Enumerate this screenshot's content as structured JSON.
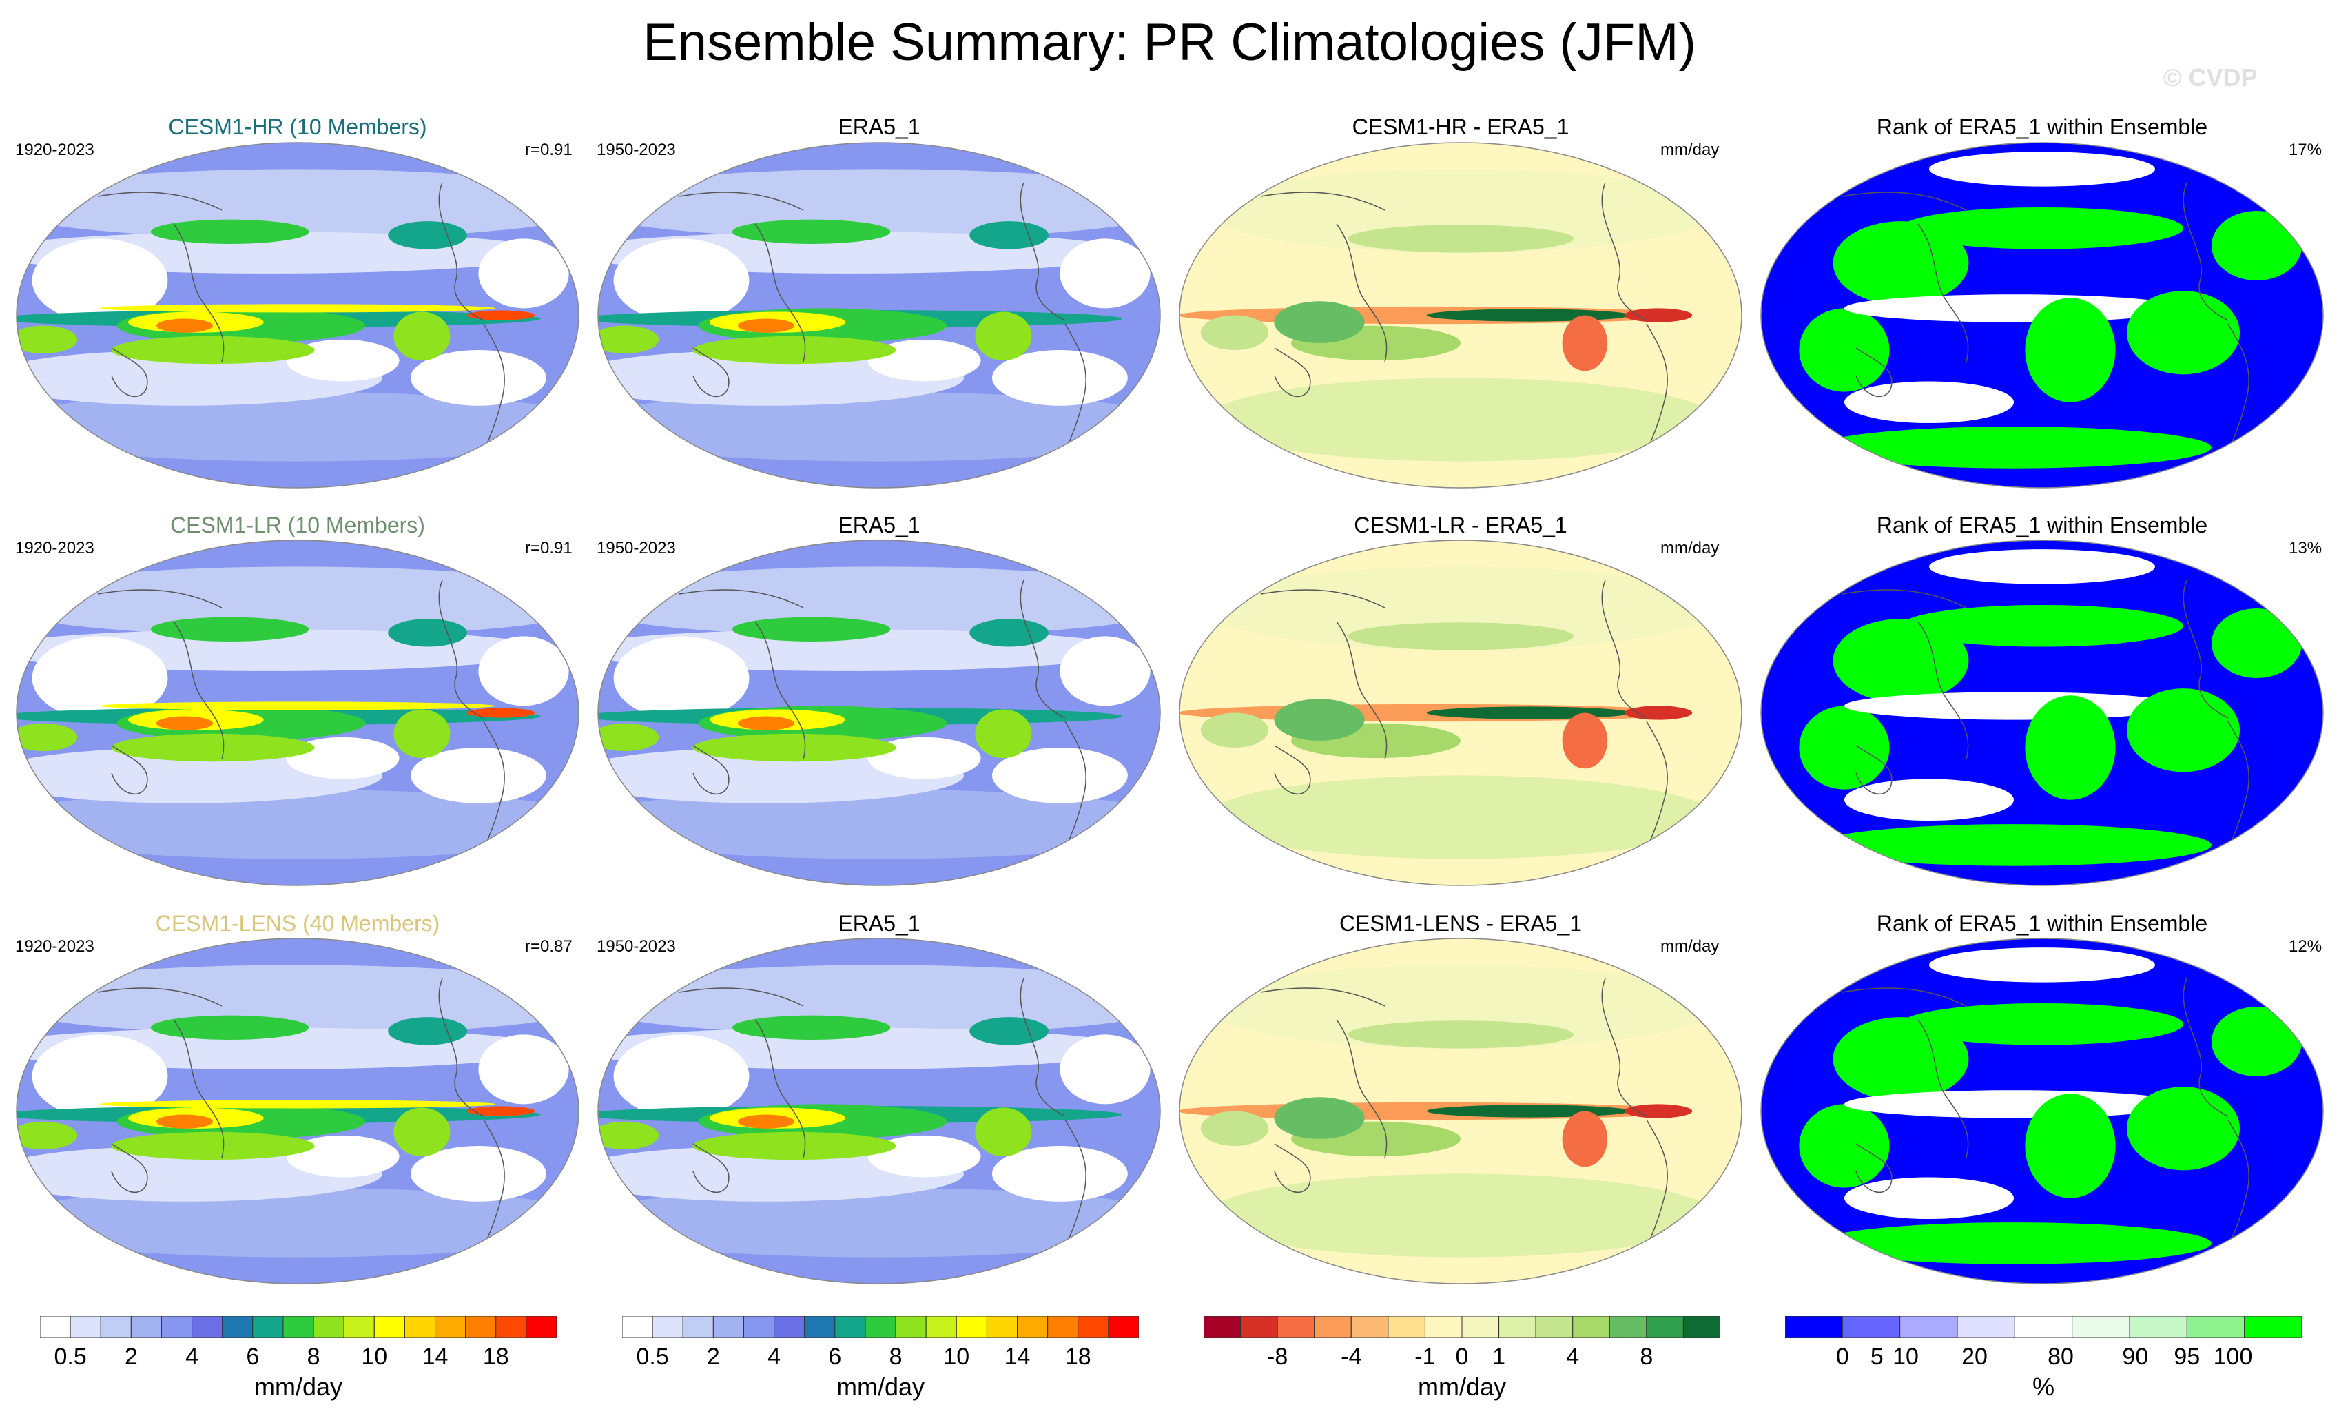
{
  "title": "Ensemble Summary: PR Climatologies (JFM)",
  "watermark": "© CVDP",
  "colors": {
    "precip": [
      "#ffffff",
      "#dce3fb",
      "#c2cdf6",
      "#a3b3f2",
      "#8796ee",
      "#6b70e6",
      "#1f77b0",
      "#13a68a",
      "#2fcb3f",
      "#8ee31e",
      "#c8f019",
      "#ffff00",
      "#ffd400",
      "#ffaa00",
      "#ff7f00",
      "#ff4800",
      "#ff0000"
    ],
    "diff": [
      "#a50026",
      "#d73027",
      "#f46d43",
      "#fb9c59",
      "#fdba74",
      "#fee090",
      "#fff6c0",
      "#f3f6bf",
      "#dff0a8",
      "#c5e48e",
      "#a6d96a",
      "#66bd63",
      "#2f9e4d",
      "#0e6b33"
    ],
    "rank": [
      "#0000ff",
      "#6666ff",
      "#aaaaff",
      "#e0e0ff",
      "#ffffff",
      "#ebfbeb",
      "#c8f7c8",
      "#8ef38e",
      "#00ff00"
    ],
    "cesm1_hr_title": "#1a6f7a",
    "cesm1_lr_title": "#6e8f6e",
    "cesm1_lens_title": "#d9c67a"
  },
  "rows": [
    {
      "model_title": "CESM1-HR (10 Members)",
      "model_period": "1920-2023",
      "model_r": "r=0.91",
      "obs_title": "ERA5_1",
      "obs_period": "1950-2023",
      "diff_title": "CESM1-HR - ERA5_1",
      "diff_units": "mm/day",
      "rank_title": "Rank of ERA5_1 within Ensemble",
      "rank_pct": "17%"
    },
    {
      "model_title": "CESM1-LR (10 Members)",
      "model_period": "1920-2023",
      "model_r": "r=0.91",
      "obs_title": "ERA5_1",
      "obs_period": "1950-2023",
      "diff_title": "CESM1-LR - ERA5_1",
      "diff_units": "mm/day",
      "rank_title": "Rank of ERA5_1 within Ensemble",
      "rank_pct": "13%"
    },
    {
      "model_title": "CESM1-LENS (40 Members)",
      "model_period": "1920-2023",
      "model_r": "r=0.87",
      "obs_title": "ERA5_1",
      "obs_period": "1950-2023",
      "diff_title": "CESM1-LENS - ERA5_1",
      "diff_units": "mm/day",
      "rank_title": "Rank of ERA5_1 within Ensemble",
      "rank_pct": "12%"
    }
  ],
  "colorbars": {
    "precip_labels": [
      "0.5",
      "2",
      "4",
      "6",
      "8",
      "10",
      "14",
      "18"
    ],
    "precip_units": "mm/day",
    "diff_labels": [
      "-8",
      "-4",
      "-1",
      "0",
      "1",
      "4",
      "8"
    ],
    "diff_units": "mm/day",
    "rank_labels": [
      "0",
      "5",
      "10",
      "20",
      "80",
      "90",
      "95",
      "100"
    ],
    "rank_units": "%"
  },
  "chart_data": [
    {
      "type": "heatmap",
      "title": "Ensemble Summary: PR Climatologies (JFM)",
      "description_panels": "3 rows x 4 columns of global Robinson-projection maps",
      "columns": [
        "Model ensemble mean",
        "ERA5_1 observations",
        "Model - ERA5_1 difference",
        "Rank of ERA5_1 within ensemble"
      ],
      "rows": [
        "CESM1-HR (10 Members)",
        "CESM1-LR (10 Members)",
        "CESM1-LENS (40 Members)"
      ],
      "pattern_correlations": [
        0.91,
        0.91,
        0.87
      ],
      "rank_percent": [
        17,
        13,
        12
      ],
      "precip_colorbar_levels": [
        0.5,
        1,
        2,
        3,
        4,
        5,
        6,
        7,
        8,
        9,
        10,
        12,
        14,
        16,
        18,
        20
      ],
      "diff_colorbar_levels": [
        -8,
        -6,
        -4,
        -2,
        -1,
        -0.5,
        0,
        0.5,
        1,
        2,
        4,
        6,
        8
      ],
      "rank_colorbar_levels": [
        0,
        5,
        10,
        20,
        80,
        90,
        95,
        100
      ],
      "units": {
        "precip": "mm/day",
        "diff": "mm/day",
        "rank": "%"
      }
    }
  ]
}
